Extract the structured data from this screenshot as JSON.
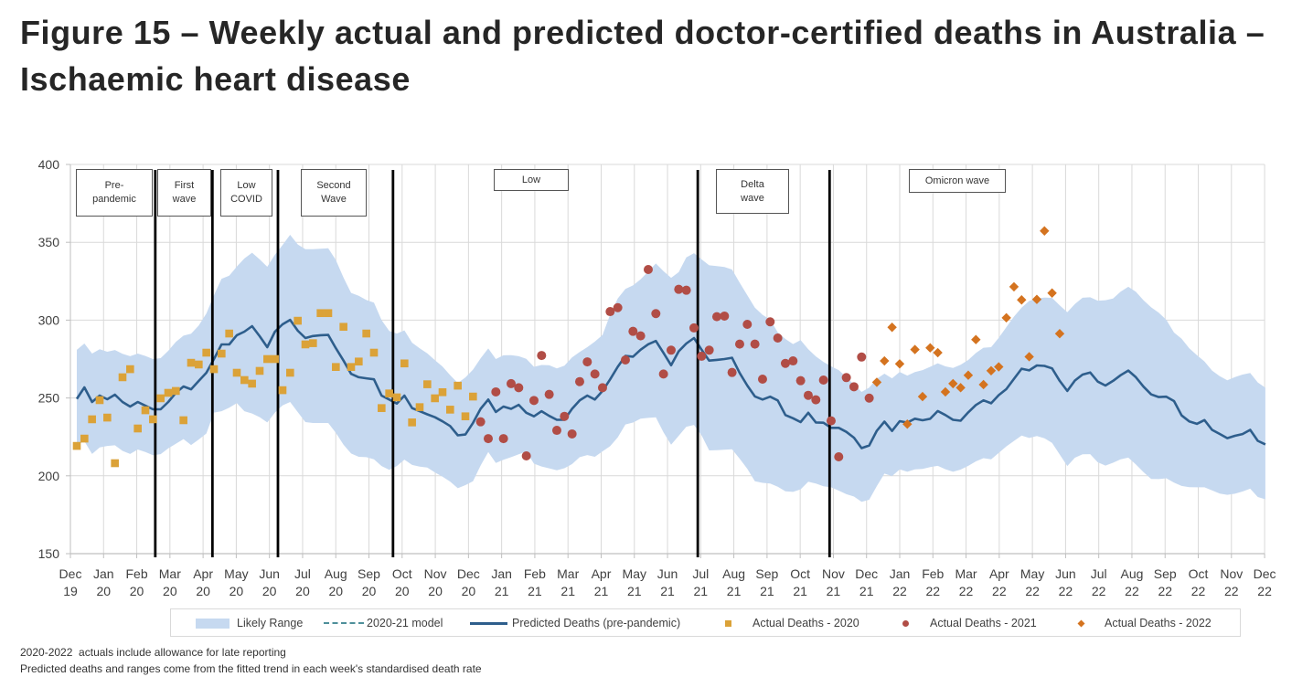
{
  "title_lines": [
    "Figure 15 – Weekly actual and predicted doctor-certified deaths in Australia –",
    "Ischaemic heart disease"
  ],
  "notes": [
    "2020-2022  actuals include allowance for late reporting",
    "Predicted deaths and ranges come from the fitted trend in each week's standardised death rate"
  ],
  "chart_data": {
    "type": "line",
    "title": "Figure 15 – Weekly actual and predicted doctor-certified deaths in Australia – Ischaemic heart disease",
    "xlabel": "",
    "ylabel": "",
    "ylim": [
      150,
      400
    ],
    "y_ticks": [
      150,
      200,
      250,
      300,
      350,
      400
    ],
    "grid": true,
    "legend_position": "bottom",
    "x_ticks": [
      {
        "m": "Dec",
        "y": "19"
      },
      {
        "m": "Jan",
        "y": "20"
      },
      {
        "m": "Feb",
        "y": "20"
      },
      {
        "m": "Mar",
        "y": "20"
      },
      {
        "m": "Apr",
        "y": "20"
      },
      {
        "m": "May",
        "y": "20"
      },
      {
        "m": "Jun",
        "y": "20"
      },
      {
        "m": "Jul",
        "y": "20"
      },
      {
        "m": "Aug",
        "y": "20"
      },
      {
        "m": "Sep",
        "y": "20"
      },
      {
        "m": "Oct",
        "y": "20"
      },
      {
        "m": "Nov",
        "y": "20"
      },
      {
        "m": "Dec",
        "y": "20"
      },
      {
        "m": "Jan",
        "y": "21"
      },
      {
        "m": "Feb",
        "y": "21"
      },
      {
        "m": "Mar",
        "y": "21"
      },
      {
        "m": "Apr",
        "y": "21"
      },
      {
        "m": "May",
        "y": "21"
      },
      {
        "m": "Jun",
        "y": "21"
      },
      {
        "m": "Jul",
        "y": "21"
      },
      {
        "m": "Aug",
        "y": "21"
      },
      {
        "m": "Sep",
        "y": "21"
      },
      {
        "m": "Oct",
        "y": "21"
      },
      {
        "m": "Nov",
        "y": "21"
      },
      {
        "m": "Dec",
        "y": "21"
      },
      {
        "m": "Jan",
        "y": "22"
      },
      {
        "m": "Feb",
        "y": "22"
      },
      {
        "m": "Mar",
        "y": "22"
      },
      {
        "m": "Apr",
        "y": "22"
      },
      {
        "m": "May",
        "y": "22"
      },
      {
        "m": "Jun",
        "y": "22"
      },
      {
        "m": "Jul",
        "y": "22"
      },
      {
        "m": "Aug",
        "y": "22"
      },
      {
        "m": "Sep",
        "y": "22"
      },
      {
        "m": "Oct",
        "y": "22"
      },
      {
        "m": "Nov",
        "y": "22"
      },
      {
        "m": "Dec",
        "y": "22"
      }
    ],
    "phases": [
      {
        "label": "Pre-\npandemic"
      },
      {
        "label": "First\nwave"
      },
      {
        "label": "Low\nCOVID"
      },
      {
        "label": "Second\nWave"
      },
      {
        "label": "Low"
      },
      {
        "label": "Delta\nwave"
      },
      {
        "label": "Omicron wave"
      }
    ],
    "phase_boundaries_week": [
      10.3,
      17.8,
      26.4,
      41.5,
      81.5,
      98.8
    ],
    "legend": [
      {
        "label": "Likely Range"
      },
      {
        "label": "2020-21 model"
      },
      {
        "label": "Predicted Deaths (pre-pandemic)"
      },
      {
        "label": "Actual Deaths - 2020"
      },
      {
        "label": "Actual Deaths - 2021"
      },
      {
        "label": "Actual Deaths - 2022"
      }
    ],
    "colors": {
      "likely_range": "#c6d9f0",
      "model_2020_21": "#4e8f9a",
      "predicted": "#2e5e8c",
      "actual_2020": "#dba238",
      "actual_2021": "#b14d46",
      "actual_2022": "#d4731f"
    },
    "predicted": [
      249.4,
      256.8,
      247.4,
      251.5,
      249.2,
      252.1,
      247.4,
      244.5,
      247.4,
      245,
      242.7,
      242.7,
      247.4,
      253.3,
      257.4,
      255.6,
      260.9,
      266.2,
      275,
      284.4,
      284.4,
      290.3,
      292.6,
      296.1,
      289.7,
      282.6,
      292.6,
      297.3,
      300.2,
      293.2,
      288.5,
      289.8,
      290.3,
      290.5,
      282,
      274,
      265.5,
      263.3,
      262.6,
      262,
      251.5,
      249,
      246.4,
      251.5,
      243.5,
      241.5,
      239.5,
      237.6,
      235,
      232,
      226,
      226.5,
      234,
      243,
      249,
      241,
      244.5,
      243,
      245.6,
      240.5,
      238.2,
      241.5,
      238.5,
      236,
      236,
      243,
      248.5,
      251.5,
      249,
      254.5,
      262,
      270,
      277,
      276.5,
      281,
      284.5,
      286.6,
      279,
      271,
      280,
      285,
      288.5,
      281,
      274,
      274.5,
      275,
      275.8,
      266,
      258,
      251,
      249,
      250.8,
      248.4,
      239,
      237,
      234.5,
      240.5,
      234.3,
      234.1,
      230.8,
      230.8,
      228.2,
      224.5,
      217.8,
      219.5,
      229,
      234.8,
      228.8,
      235.1,
      234.2,
      236.7,
      235.7,
      236.6,
      241.6,
      239,
      236,
      235.4,
      240.8,
      245.5,
      248.5,
      246.6,
      251.8,
      255.7,
      262.3,
      268.8,
      267.7,
      270.9,
      270.6,
      269,
      261,
      254.5,
      261.2,
      265,
      266.4,
      260.5,
      258,
      261,
      264.6,
      267.6,
      263.3,
      257.3,
      252.3,
      250.6,
      250.8,
      248,
      238.8,
      235,
      233.4,
      235.8,
      229.5,
      226.9,
      224.2,
      225.7,
      226.8,
      229.5,
      222.5,
      220.2
    ],
    "likely_range_upper": [
      280.9,
      285,
      278.5,
      281.3,
      279.7,
      280.8,
      278.4,
      276.8,
      278.5,
      277,
      275,
      275.6,
      280.3,
      286,
      290,
      291.3,
      296.5,
      304.3,
      316,
      326.6,
      328.5,
      334.4,
      339.6,
      343.3,
      339,
      334.3,
      342,
      348.2,
      354.8,
      348.6,
      345.6,
      345.6,
      345.9,
      346.2,
      338.6,
      327.3,
      317.5,
      315.6,
      312.9,
      311.2,
      300,
      293,
      291.4,
      293.4,
      285.5,
      281.9,
      278.7,
      274.3,
      270.2,
      264.7,
      259.6,
      263.2,
      268.2,
      275.4,
      281.8,
      275,
      277.4,
      277.5,
      276.8,
      275.2,
      270,
      271.2,
      271,
      269,
      270.7,
      276,
      279.5,
      282.6,
      286.2,
      290.5,
      303.5,
      313.9,
      320,
      322.3,
      326.2,
      331.3,
      336.4,
      331.5,
      327.2,
      330.8,
      340.3,
      343,
      339,
      335.2,
      334.7,
      334.1,
      332.5,
      324,
      316,
      308,
      303.4,
      300.4,
      292.2,
      287.9,
      284.6,
      287.2,
      281.3,
      276.7,
      273.2,
      270.3,
      267.9,
      263.4,
      258.6,
      253.9,
      256.7,
      262.4,
      265.6,
      262.6,
      266.7,
      264.4,
      266.6,
      267.9,
      270,
      272.3,
      270.3,
      269.3,
      271.3,
      274.4,
      278.9,
      282.3,
      282.6,
      288.6,
      295.5,
      302.3,
      308,
      312.3,
      314,
      314.5,
      314.3,
      309.5,
      305.1,
      310.4,
      314.4,
      314.7,
      312.5,
      312.8,
      313.9,
      318.3,
      321.4,
      318.2,
      312.8,
      308.2,
      304.8,
      300.2,
      292,
      288,
      282,
      277.5,
      273.5,
      267.6,
      264,
      261.3,
      263.4,
      265,
      266,
      260,
      256.6
    ],
    "likely_range_lower": [
      219.8,
      222.2,
      214,
      218.2,
      219.2,
      219.6,
      216,
      214,
      216.9,
      215.3,
      213.2,
      213.9,
      217.6,
      220.6,
      223.6,
      219.8,
      223.3,
      227.2,
      240.6,
      241.5,
      243.8,
      246.7,
      241.5,
      240,
      237.7,
      234.3,
      240.6,
      245.2,
      247.4,
      240.9,
      234.5,
      233.9,
      233.9,
      233.9,
      227.6,
      220,
      214.3,
      212.2,
      212,
      210.6,
      206.3,
      203.9,
      206.3,
      210.4,
      207,
      205.9,
      205.3,
      202.2,
      199.5,
      196.3,
      192,
      194,
      196.5,
      206.6,
      215.3,
      208.3,
      210.3,
      212,
      213.8,
      215.6,
      207.8,
      206,
      204.8,
      203.5,
      204.9,
      207.5,
      212,
      213.3,
      212.2,
      215.7,
      219,
      224.7,
      233,
      234.2,
      236.7,
      237.2,
      237.6,
      228,
      220,
      225.7,
      231.5,
      232.7,
      226,
      216.3,
      216.5,
      216.8,
      217,
      211,
      204.5,
      196.5,
      195.5,
      195,
      193,
      190,
      189.7,
      191.3,
      196.2,
      195,
      193.3,
      192.6,
      190.5,
      188.2,
      186.7,
      183.3,
      184.6,
      193.4,
      201.4,
      199.8,
      204.1,
      202.6,
      204.1,
      204.4,
      205.6,
      206.4,
      204.2,
      202.6,
      204,
      206.4,
      209.3,
      211.3,
      210.6,
      214.7,
      218.9,
      222.4,
      225.9,
      224.3,
      225.6,
      224.1,
      221.1,
      213.7,
      206.3,
      211.6,
      213.8,
      213.9,
      208.7,
      206.6,
      208.4,
      210.6,
      211.7,
      207.3,
      202.4,
      198,
      197.9,
      198.4,
      195.6,
      193.5,
      192.7,
      192.6,
      192.6,
      190.6,
      188.6,
      187.8,
      188.5,
      189.9,
      191.7,
      186.4,
      184.9
    ],
    "actual_2020": {
      "start_week": 0,
      "values": [
        219.2,
        223.9,
        236.3,
        248.6,
        237.4,
        208.1,
        263.3,
        268.5,
        230.4,
        242.1,
        236.3,
        249.8,
        253.3,
        254.5,
        235.7,
        272.6,
        271.5,
        279.1,
        268.5,
        278.5,
        291.4,
        266.2,
        261.5,
        259.2,
        267.4,
        275,
        275,
        255,
        266.2,
        299.6,
        284.4,
        285.2,
        304.5,
        304.5,
        269.9,
        295.7,
        269.9,
        273.4,
        291.4,
        279.1,
        243.5,
        252.9,
        250.4,
        272.2,
        234.3,
        244.1,
        258.8,
        249.8,
        253.7,
        242.5,
        257.9,
        238.2,
        250.9
      ]
    },
    "actual_2021": {
      "start_week": 53,
      "values": [
        234.7,
        223.9,
        253.9,
        223.9,
        259.2,
        256.6,
        212.8,
        248.4,
        277.3,
        252.3,
        229.2,
        238.2,
        226.9,
        260.5,
        273.2,
        265.4,
        256.6,
        305.5,
        308,
        274.4,
        292.8,
        289.9,
        332.5,
        304.2,
        265.4,
        280.7,
        319.8,
        319.2,
        295,
        276.8,
        280.7,
        302.2,
        302.6,
        266.4,
        284.6,
        297.3,
        284.6,
        262.1,
        298.9,
        288.5,
        272.2,
        273.8,
        261.1,
        251.7,
        248.8,
        261.5,
        235.3,
        212.2,
        263.1,
        257.2,
        276.3,
        249.9
      ]
    },
    "actual_2022": {
      "start_week": 105,
      "values": [
        260.1,
        273.8,
        295.4,
        271.9,
        233.2,
        281.1,
        250.9,
        282.2,
        279.1,
        253.9,
        259.2,
        256.6,
        264.6,
        287.5,
        258.6,
        267.5,
        270,
        301.5,
        321.4,
        313,
        276.5,
        313.3,
        357.3,
        317.4,
        291.3
      ]
    }
  }
}
